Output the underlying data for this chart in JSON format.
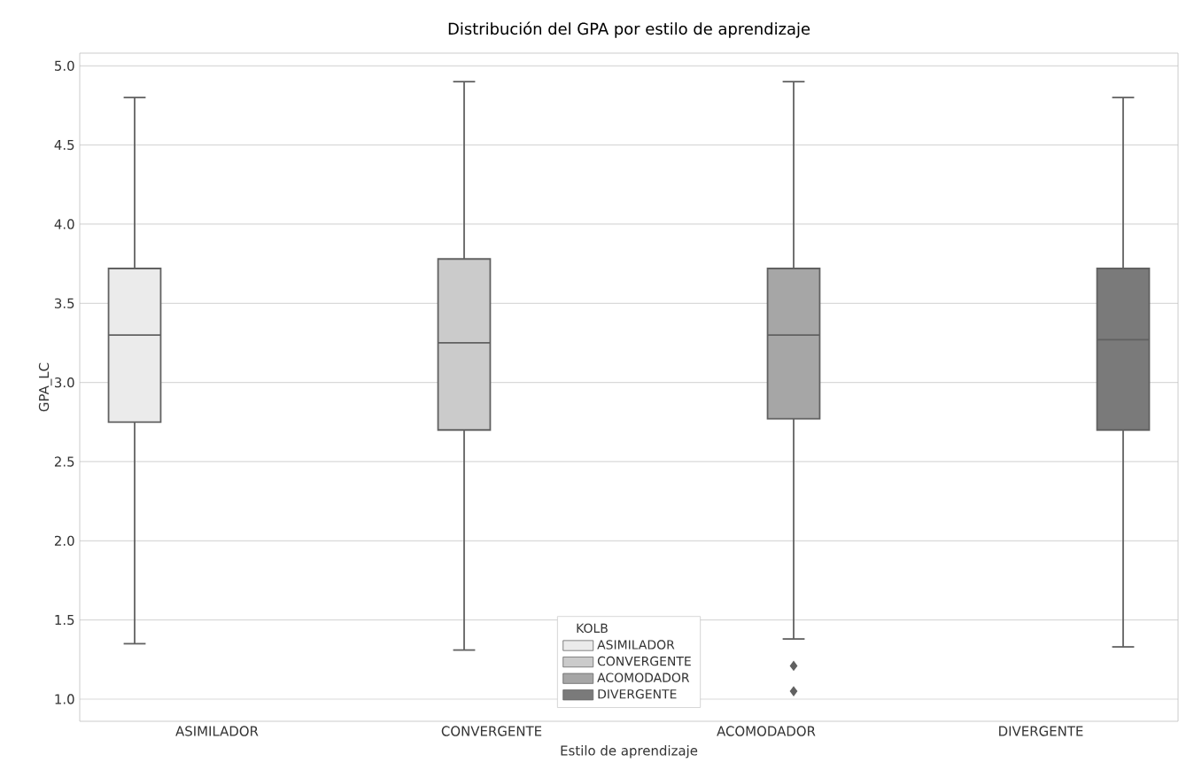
{
  "chart_data": {
    "type": "box",
    "title": "Distribución del GPA por estilo de aprendizaje",
    "xlabel": "Estilo de aprendizaje",
    "ylabel": "GPA_LC",
    "categories": [
      "ASIMILADOR",
      "CONVERGENTE",
      "ACOMODADOR",
      "DIVERGENTE"
    ],
    "legend_title": "KOLB",
    "legend": "bottom",
    "grid": "y",
    "marker": "diamond",
    "ylim": [
      0.86,
      5.08
    ],
    "yticks": [
      {
        "value": 1,
        "label": "1.0"
      },
      {
        "value": 1.5,
        "label": "1.5"
      },
      {
        "value": 2,
        "label": "2.0"
      },
      {
        "value": 2.5,
        "label": "2.5"
      },
      {
        "value": 3,
        "label": "3.0"
      },
      {
        "value": 3.5,
        "label": "3.5"
      },
      {
        "value": 4,
        "label": "4.0"
      },
      {
        "value": 4.5,
        "label": "4.5"
      },
      {
        "value": 5,
        "label": "5.0"
      }
    ],
    "series": [
      {
        "name": "ASIMILADOR",
        "color": "#ebebeb",
        "boxes": [
          {
            "low": 1.35,
            "q1": 2.75,
            "median": 3.3,
            "q3": 3.72,
            "high": 4.8
          },
          null,
          null,
          null
        ]
      },
      {
        "name": "CONVERGENTE",
        "color": "#cbcbcb",
        "boxes": [
          null,
          {
            "low": 1.31,
            "q1": 2.7,
            "median": 3.25,
            "q3": 3.78,
            "high": 4.9
          },
          null,
          null
        ]
      },
      {
        "name": "ACOMODADOR",
        "color": "#a6a6a6",
        "boxes": [
          null,
          null,
          {
            "low": 1.38,
            "q1": 2.77,
            "median": 3.3,
            "q3": 3.72,
            "high": 4.9,
            "outliers": [
              1.21,
              1.05
            ]
          },
          null
        ]
      },
      {
        "name": "DIVERGENTE",
        "color": "#7a7a7a",
        "boxes": [
          null,
          null,
          null,
          {
            "low": 1.33,
            "q1": 2.7,
            "median": 3.27,
            "q3": 3.72,
            "high": 4.8
          }
        ]
      }
    ]
  }
}
